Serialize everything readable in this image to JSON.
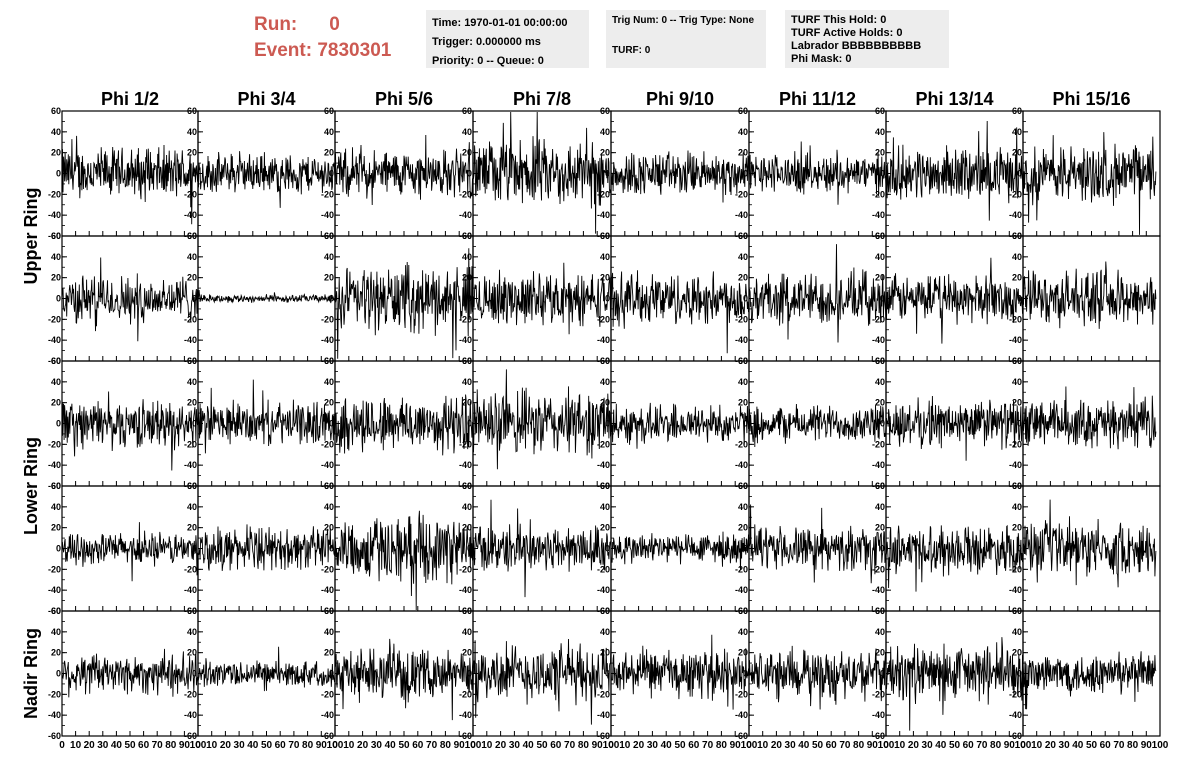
{
  "header": {
    "run_label": "Run:",
    "run_value": "0",
    "event_label": "Event:",
    "event_value": "7830301"
  },
  "info_boxes": {
    "time": "Time: 1970-01-01 00:00:00",
    "trigger": "Trigger: 0.000000 ms",
    "priority": "Priority: 0 -- Queue: 0",
    "trig_num": "Trig Num: 0 -- Trig Type: None",
    "turf": "TURF: 0",
    "turf_this_hold": "TURF This Hold: 0",
    "turf_active_holds": "TURF Active Holds: 0",
    "labrador": "Labrador BBBBBBBBBB",
    "phi_mask": "Phi Mask: 0"
  },
  "chart_data": {
    "type": "line",
    "columns": [
      "Phi 1/2",
      "Phi 3/4",
      "Phi 5/6",
      "Phi 7/8",
      "Phi 9/10",
      "Phi 11/12",
      "Phi 13/14",
      "Phi 15/16"
    ],
    "row_groups": [
      {
        "label": "Upper Ring",
        "rows": [
          0,
          1
        ]
      },
      {
        "label": "Lower Ring",
        "rows": [
          2,
          3
        ]
      },
      {
        "label": "Nadir Ring",
        "rows": [
          4
        ]
      }
    ],
    "rows": 5,
    "xlim": [
      0,
      100
    ],
    "ylim": [
      -60,
      60
    ],
    "x_ticks": [
      "0",
      "10",
      "20",
      "30",
      "40",
      "50",
      "60",
      "70",
      "80",
      "90",
      "100"
    ],
    "y_ticks": [
      "-60",
      "-40",
      "-20",
      "0",
      "20",
      "40",
      "60"
    ],
    "line_color": "#000000",
    "amplitudes": [
      [
        20,
        15,
        18,
        25,
        17,
        15,
        20,
        22
      ],
      [
        18,
        3,
        25,
        20,
        20,
        20,
        18,
        20
      ],
      [
        18,
        16,
        22,
        25,
        15,
        14,
        18,
        18
      ],
      [
        12,
        16,
        25,
        18,
        12,
        16,
        18,
        20
      ],
      [
        16,
        10,
        18,
        22,
        18,
        18,
        22,
        16
      ]
    ]
  }
}
